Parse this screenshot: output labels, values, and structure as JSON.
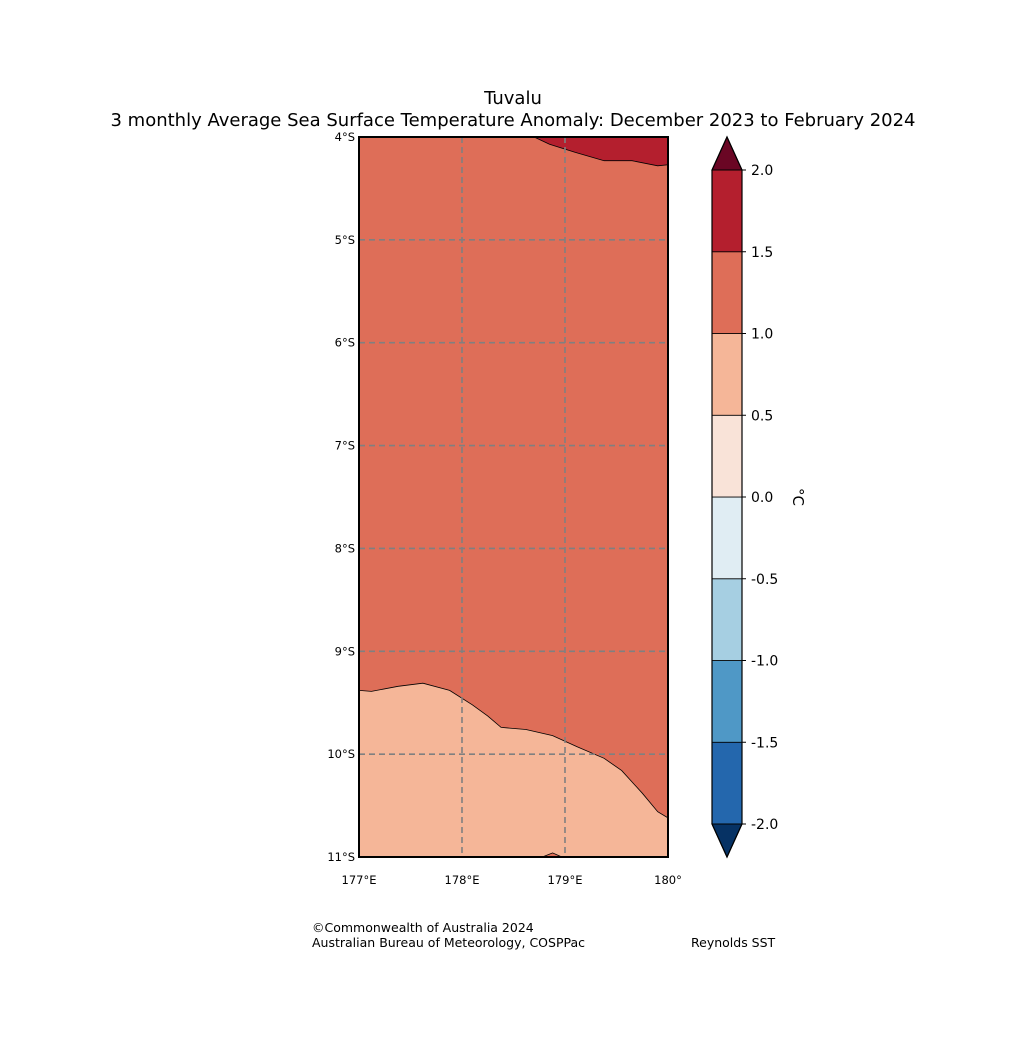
{
  "title": {
    "line1": "Tuvalu",
    "line2": "3 monthly Average Sea Surface Temperature Anomaly: December 2023 to February 2024"
  },
  "map": {
    "lon_range": [
      177,
      180
    ],
    "lat_range": [
      -11,
      -4
    ],
    "lon_ticks": [
      {
        "value": 177,
        "label": "177°E"
      },
      {
        "value": 178,
        "label": "178°E"
      },
      {
        "value": 179,
        "label": "179°E"
      },
      {
        "value": 180,
        "label": "180°"
      }
    ],
    "lat_ticks": [
      {
        "value": -4,
        "label": "4°S"
      },
      {
        "value": -5,
        "label": "5°S"
      },
      {
        "value": -6,
        "label": "6°S"
      },
      {
        "value": -7,
        "label": "7°S"
      },
      {
        "value": -8,
        "label": "8°S"
      },
      {
        "value": -9,
        "label": "9°S"
      },
      {
        "value": -10,
        "label": "10°S"
      },
      {
        "value": -11,
        "label": "11°S"
      }
    ],
    "background_color": "#de6e58",
    "regions": [
      {
        "name": "anomaly-1.5-to-2.0-region",
        "color": "#b41f2e",
        "coords": [
          [
            178.7,
            -4.0
          ],
          [
            178.85,
            -4.07
          ],
          [
            179.1,
            -4.15
          ],
          [
            179.38,
            -4.23
          ],
          [
            179.65,
            -4.23
          ],
          [
            179.9,
            -4.28
          ],
          [
            180.0,
            -4.27
          ],
          [
            180.0,
            -4.0
          ]
        ]
      },
      {
        "name": "anomaly-0.5-to-1.0-region",
        "color": "#f5b698",
        "coords": [
          [
            177.0,
            -9.38
          ],
          [
            177.12,
            -9.39
          ],
          [
            177.38,
            -9.34
          ],
          [
            177.62,
            -9.31
          ],
          [
            177.88,
            -9.38
          ],
          [
            178.1,
            -9.52
          ],
          [
            178.25,
            -9.63
          ],
          [
            178.38,
            -9.74
          ],
          [
            178.62,
            -9.76
          ],
          [
            178.88,
            -9.82
          ],
          [
            179.12,
            -9.93
          ],
          [
            179.38,
            -10.04
          ],
          [
            179.55,
            -10.16
          ],
          [
            179.75,
            -10.38
          ],
          [
            179.9,
            -10.56
          ],
          [
            180.0,
            -10.62
          ],
          [
            180.0,
            -11.0
          ],
          [
            177.0,
            -11.0
          ]
        ]
      },
      {
        "name": "anomaly-1.0-to-1.5-spot",
        "color": "#de6e58",
        "coords": [
          [
            178.78,
            -11.0
          ],
          [
            178.88,
            -10.96
          ],
          [
            178.97,
            -11.0
          ]
        ]
      }
    ]
  },
  "colorbar": {
    "unit": "°C",
    "levels": [
      -2.0,
      -1.5,
      -1.0,
      -0.5,
      0.0,
      0.5,
      1.0,
      1.5,
      2.0
    ],
    "labels": [
      "-2.0",
      "-1.5",
      "-1.0",
      "-0.5",
      "0.0",
      "0.5",
      "1.0",
      "1.5",
      "2.0"
    ],
    "colors": [
      "#2467ad",
      "#4f98c6",
      "#a6cfe2",
      "#e0edf3",
      "#f9e3d8",
      "#f5b698",
      "#de6e58",
      "#b41f2e"
    ],
    "under_color": "#063264",
    "over_color": "#6a0624"
  },
  "credits": {
    "copyright": "©Commonwealth of Australia 2024",
    "agency": "Australian Bureau of Meteorology, COSPPac",
    "dataset": "Reynolds SST"
  }
}
